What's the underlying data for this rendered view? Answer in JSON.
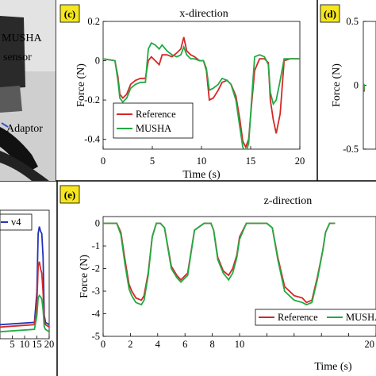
{
  "photo": {
    "label_musha": "MUSHA",
    "label_sensor": "sensor",
    "label_adaptor": "Adaptor"
  },
  "chart_data": [
    {
      "id": "c",
      "type": "line",
      "panel_label": "(c)",
      "title": "x-direction",
      "xlabel": "Time  (s)",
      "ylabel": "Force  (N)",
      "xlim": [
        0,
        20
      ],
      "ylim": [
        -0.45,
        0.2
      ],
      "xticks": [
        0,
        5,
        10,
        15,
        20
      ],
      "yticks": [
        0.2,
        0,
        -0.2,
        -0.4
      ],
      "ytick_labels": [
        "0.2",
        "0",
        "-0.2",
        "-0.4"
      ],
      "legend": "bottom-left",
      "series": [
        {
          "name": "Reference",
          "color": "#d62728",
          "x": [
            0,
            1.2,
            1.5,
            1.7,
            2.0,
            2.4,
            2.8,
            3.3,
            3.8,
            4.3,
            4.6,
            4.9,
            5.3,
            5.7,
            6.0,
            6.5,
            7.0,
            7.5,
            7.9,
            8.2,
            8.5,
            8.9,
            9.3,
            9.8,
            10.2,
            10.5,
            10.8,
            11.2,
            11.7,
            12.1,
            12.6,
            13.0,
            13.5,
            13.9,
            14.2,
            14.5,
            14.8,
            15.1,
            15.4,
            15.9,
            16.4,
            16.8,
            17.0,
            17.3,
            17.6,
            18.0,
            18.4,
            19.0,
            20
          ],
          "y": [
            0.01,
            0.0,
            -0.08,
            -0.17,
            -0.19,
            -0.17,
            -0.12,
            -0.1,
            -0.09,
            -0.09,
            0.0,
            0.02,
            0.0,
            -0.02,
            0.03,
            0.03,
            0.02,
            0.04,
            0.06,
            0.12,
            0.05,
            0.03,
            0.02,
            0.0,
            0.0,
            -0.05,
            -0.2,
            -0.19,
            -0.15,
            -0.11,
            -0.1,
            -0.12,
            -0.18,
            -0.3,
            -0.41,
            -0.44,
            -0.4,
            -0.22,
            -0.05,
            0.01,
            0.01,
            -0.01,
            -0.2,
            -0.3,
            -0.37,
            -0.27,
            0.0,
            0.01,
            0.01
          ]
        },
        {
          "name": "MUSHA",
          "color": "#22aa44",
          "x": [
            0,
            1.2,
            1.5,
            1.7,
            2.0,
            2.4,
            2.8,
            3.3,
            3.8,
            4.3,
            4.6,
            4.9,
            5.3,
            5.7,
            6.0,
            6.5,
            7.0,
            7.5,
            7.9,
            8.2,
            8.5,
            8.9,
            9.3,
            9.8,
            10.2,
            10.5,
            10.8,
            11.2,
            11.7,
            12.1,
            12.6,
            13.0,
            13.5,
            13.9,
            14.2,
            14.5,
            14.8,
            15.1,
            15.4,
            15.9,
            16.4,
            16.8,
            17.0,
            17.3,
            17.6,
            18.0,
            18.4,
            19.0,
            20
          ],
          "y": [
            0.01,
            0.0,
            -0.1,
            -0.19,
            -0.21,
            -0.19,
            -0.14,
            -0.12,
            -0.11,
            -0.11,
            0.06,
            0.09,
            0.08,
            0.06,
            0.08,
            0.05,
            0.03,
            0.02,
            0.03,
            0.07,
            0.03,
            0.01,
            0.01,
            0.0,
            0.0,
            -0.04,
            -0.15,
            -0.14,
            -0.12,
            -0.09,
            -0.1,
            -0.12,
            -0.2,
            -0.34,
            -0.44,
            -0.47,
            -0.42,
            -0.2,
            0.02,
            0.03,
            0.02,
            -0.02,
            -0.16,
            -0.22,
            -0.2,
            -0.1,
            0.01,
            0.01,
            0.01
          ]
        }
      ]
    },
    {
      "id": "d",
      "type": "line",
      "panel_label": "(d)",
      "ylim": [
        -0.5,
        0.5
      ],
      "yticks": [
        0.5,
        0,
        -0.5
      ],
      "ytick_labels": [
        "0.5",
        "0",
        "-0.5"
      ],
      "ylabel": "Force  (N)",
      "series": [
        {
          "name": "",
          "color": "#d62728",
          "x": [
            0,
            0.5,
            1.0,
            1.4
          ],
          "y": [
            0.0,
            0.01,
            0.0,
            -0.05
          ]
        },
        {
          "name": "",
          "color": "#22aa44",
          "x": [
            0,
            0.5,
            1.0,
            1.4
          ],
          "y": [
            0.0,
            0.0,
            0.01,
            -0.04
          ]
        }
      ]
    },
    {
      "id": "b",
      "type": "line",
      "xlim": [
        0,
        20
      ],
      "xticks": [
        5,
        10,
        15,
        20
      ],
      "xtick_labels": [
        "5",
        "10",
        "15",
        "20"
      ],
      "legend": "top",
      "series": [
        {
          "name": "v4",
          "color": "#2233bb",
          "x": [
            0,
            14,
            15,
            15.5,
            16,
            16.5,
            17,
            17.5,
            18,
            18.5,
            20
          ],
          "y": [
            0.02,
            0.04,
            0.3,
            0.8,
            0.86,
            0.82,
            0.8,
            0.6,
            0.1,
            0.04,
            0.02
          ]
        },
        {
          "name": "",
          "color": "#d62728",
          "x": [
            0,
            14,
            15,
            15.5,
            16,
            16.5,
            17,
            17.5,
            18,
            18.5,
            20
          ],
          "y": [
            0.0,
            0.02,
            0.2,
            0.52,
            0.56,
            0.5,
            0.46,
            0.3,
            0.05,
            0.02,
            0.0
          ]
        },
        {
          "name": "",
          "color": "#22aa44",
          "x": [
            0,
            14,
            15,
            15.5,
            16,
            16.5,
            17,
            17.5,
            18,
            18.5,
            20
          ],
          "y": [
            -0.04,
            -0.02,
            0.1,
            0.25,
            0.27,
            0.26,
            0.24,
            0.15,
            0.0,
            -0.02,
            -0.04
          ]
        }
      ]
    },
    {
      "id": "e",
      "type": "line",
      "panel_label": "(e)",
      "title": "z-direction",
      "xlabel": "Time  (s)",
      "ylabel": "Force  (N)",
      "xlim": [
        0,
        20
      ],
      "ylim": [
        -5,
        0.3
      ],
      "xticks": [
        0,
        2,
        4,
        6,
        8,
        10,
        12,
        14,
        16,
        18,
        20
      ],
      "xtick_labels": [
        "0",
        "2",
        "4",
        "6",
        "8",
        "10",
        "",
        "",
        "",
        "",
        "20"
      ],
      "yticks": [
        0,
        -1,
        -2,
        -3,
        -4,
        -5
      ],
      "ytick_labels": [
        "0",
        "-1",
        "-2",
        "-3",
        "-4",
        "-5"
      ],
      "legend": "bottom-right",
      "series": [
        {
          "name": "Reference",
          "color": "#d62728",
          "x": [
            0,
            1.0,
            1.3,
            1.6,
            1.9,
            2.1,
            2.4,
            2.8,
            3.0,
            3.3,
            3.6,
            3.9,
            4.2,
            4.5,
            5.0,
            5.4,
            5.7,
            6.2,
            6.7,
            7.4,
            7.9,
            8.1,
            8.4,
            8.8,
            9.2,
            9.5,
            9.8,
            10.0,
            10.5,
            11.0,
            11.5,
            12.0,
            12.4,
            12.8,
            13.3,
            14.0,
            14.6,
            14.9,
            15.3,
            15.7,
            16.1,
            16.3,
            16.6,
            16.8,
            17.0
          ],
          "y": [
            0,
            0,
            -0.4,
            -1.6,
            -2.7,
            -3.0,
            -3.3,
            -3.4,
            -3.2,
            -2.2,
            -0.6,
            0,
            0,
            -0.2,
            -1.9,
            -2.3,
            -2.5,
            -2.2,
            -0.3,
            0,
            0,
            -0.3,
            -1.5,
            -2.1,
            -2.3,
            -2.0,
            -1.4,
            -0.6,
            0,
            0,
            0,
            0,
            -0.2,
            -1.5,
            -2.8,
            -3.2,
            -3.3,
            -3.5,
            -3.4,
            -2.4,
            -1.2,
            -0.4,
            0,
            0,
            0
          ]
        },
        {
          "name": "MUSHA",
          "color": "#22aa44",
          "x": [
            0,
            1.0,
            1.3,
            1.6,
            1.9,
            2.1,
            2.4,
            2.8,
            3.0,
            3.3,
            3.6,
            3.9,
            4.2,
            4.5,
            5.0,
            5.4,
            5.7,
            6.2,
            6.7,
            7.4,
            7.9,
            8.1,
            8.4,
            8.8,
            9.2,
            9.5,
            9.8,
            10.0,
            10.5,
            11.0,
            11.5,
            12.0,
            12.4,
            12.8,
            13.3,
            14.0,
            14.6,
            14.9,
            15.3,
            15.7,
            16.1,
            16.3,
            16.6,
            16.8,
            17.0
          ],
          "y": [
            0,
            0,
            -0.5,
            -1.8,
            -2.9,
            -3.2,
            -3.5,
            -3.6,
            -3.4,
            -2.3,
            -0.6,
            0,
            0,
            -0.2,
            -2.0,
            -2.4,
            -2.6,
            -2.3,
            -0.3,
            0,
            0,
            -0.3,
            -1.6,
            -2.2,
            -2.5,
            -2.2,
            -1.5,
            -0.7,
            0,
            0,
            0,
            0,
            -0.2,
            -1.6,
            -3.0,
            -3.4,
            -3.5,
            -3.6,
            -3.5,
            -2.5,
            -1.2,
            -0.4,
            0,
            0,
            0
          ]
        }
      ]
    }
  ]
}
